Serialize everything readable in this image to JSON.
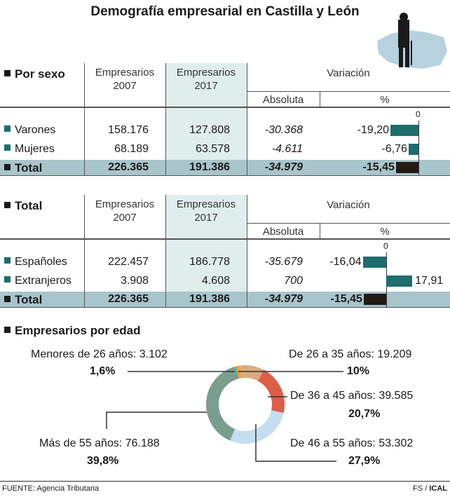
{
  "title": "Demografía empresarial en Castilla y León",
  "colors": {
    "teal": "#1e6e6e",
    "black": "#231a16",
    "shade": "#e0eded",
    "total": "#a9c5cc"
  },
  "headers": {
    "col1": "Empresarios 2007",
    "col2": "Empresarios 2017",
    "variacion": "Variación",
    "absoluta": "Absoluta",
    "pct": "%",
    "zero": "0"
  },
  "chart_data": [
    {
      "type": "table",
      "title": "Por sexo",
      "rows": [
        {
          "label": "Varones",
          "y2007": "158.176",
          "y2017": "127.808",
          "abs": "-30.368",
          "pct": "-19,20",
          "pct_value": -19.2
        },
        {
          "label": "Mujeres",
          "y2007": "68.189",
          "y2017": "63.578",
          "abs": "-4.611",
          "pct": "-6,76",
          "pct_value": -6.76
        },
        {
          "label": "Total",
          "y2007": "226.365",
          "y2017": "191.386",
          "abs": "-34.979",
          "pct": "-15,45",
          "pct_value": -15.45
        }
      ]
    },
    {
      "type": "table",
      "title": "Total",
      "rows": [
        {
          "label": "Españoles",
          "y2007": "222.457",
          "y2017": "186.778",
          "abs": "-35.679",
          "pct": "-16,04",
          "pct_value": -16.04
        },
        {
          "label": "Extranjeros",
          "y2007": "3.908",
          "y2017": "4.608",
          "abs": "700",
          "pct": "17,91",
          "pct_value": 17.91
        },
        {
          "label": "Total",
          "y2007": "226.365",
          "y2017": "191.386",
          "abs": "-34.979",
          "pct": "-15,45",
          "pct_value": -15.45
        }
      ]
    },
    {
      "type": "pie",
      "title": "Empresarios por edad",
      "slices": [
        {
          "label": "De 26 a 35 años: 19.209",
          "pct": "10%",
          "value": 10.0,
          "color": "#d9ad82"
        },
        {
          "label": "De 36 a 45 años: 39.585",
          "pct": "20,7%",
          "value": 20.7,
          "color": "#dd5e48"
        },
        {
          "label": "De 46 a 55 años: 53.302",
          "pct": "27,9%",
          "value": 27.9,
          "color": "#c5def0"
        },
        {
          "label": "Más de 55 años: 76.188",
          "pct": "39,8%",
          "value": 39.8,
          "color": "#7a9e8e"
        },
        {
          "label": "Menores de 26 años: 3.102",
          "pct": "1,6%",
          "value": 1.6,
          "color": "#f0a030"
        }
      ]
    }
  ],
  "footer": {
    "source": "FUENTE: Agencia Tributaria",
    "credit_a": "FS / ",
    "credit_b": "ICAL"
  }
}
